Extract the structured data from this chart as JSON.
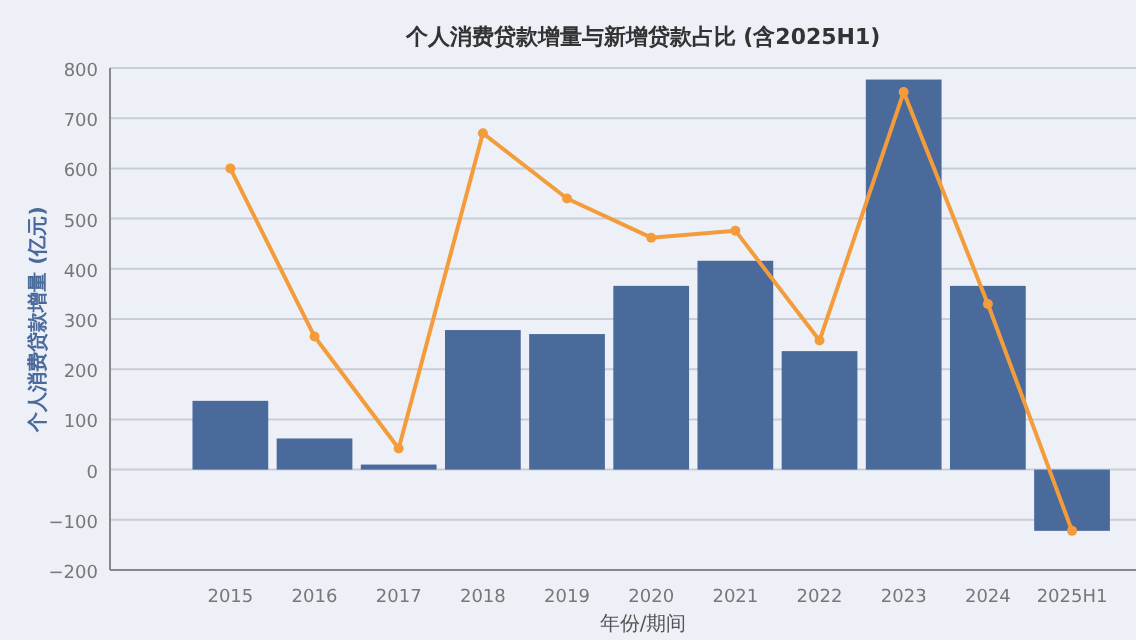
{
  "chart_data": {
    "type": "bar",
    "title": "个人消费贷款增量与新增贷款占比 (含2025H1)",
    "xlabel": "年份/期间",
    "ylabel": "个人消费贷款增量 (亿元)",
    "categories": [
      "2015",
      "2016",
      "2017",
      "2018",
      "2019",
      "2020",
      "2021",
      "2022",
      "2023",
      "2024",
      "2025H1"
    ],
    "series": [
      {
        "color": "#4a6a9c",
        "values": [
          137,
          62,
          10,
          278,
          270,
          366,
          416,
          236,
          777,
          366,
          -122
        ]
      },
      {
        "type": "line",
        "color": "#f39c3c",
        "marker": "circle",
        "values": [
          600,
          265,
          42,
          670,
          540,
          462,
          476,
          257,
          752,
          330,
          -122
        ]
      }
    ],
    "ylim": [
      -200,
      800
    ],
    "yticks": [
      -200,
      -100,
      0,
      100,
      200,
      300,
      400,
      500,
      600,
      700,
      800
    ],
    "grid": "y"
  }
}
